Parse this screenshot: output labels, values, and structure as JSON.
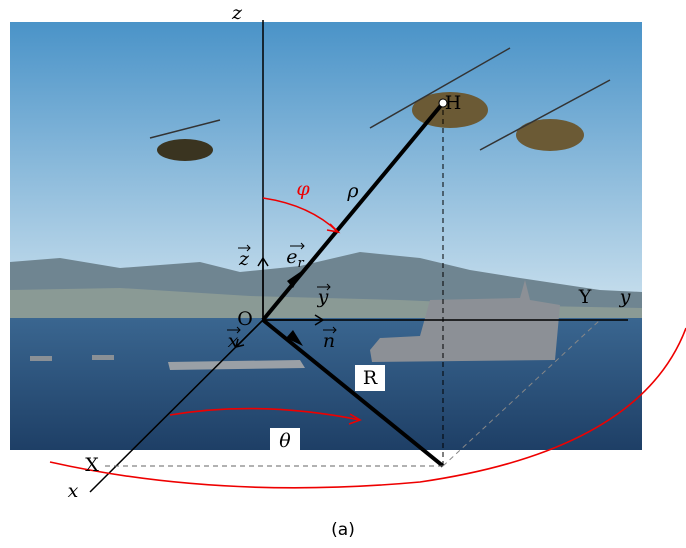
{
  "labels": {
    "z_axis": "z",
    "helicopter_point": "H",
    "phi": "φ",
    "rho": "ρ",
    "e_r": {
      "base": "e",
      "sub": "r"
    },
    "z_vector": "z",
    "y_vector": "y",
    "Y_point": "Y",
    "y_axis": "y",
    "origin": "O",
    "x_vector": "x",
    "n_vector": "n",
    "R": "R",
    "theta": "θ",
    "X_point": "X",
    "x_axis": "x"
  },
  "caption": "(a)"
}
